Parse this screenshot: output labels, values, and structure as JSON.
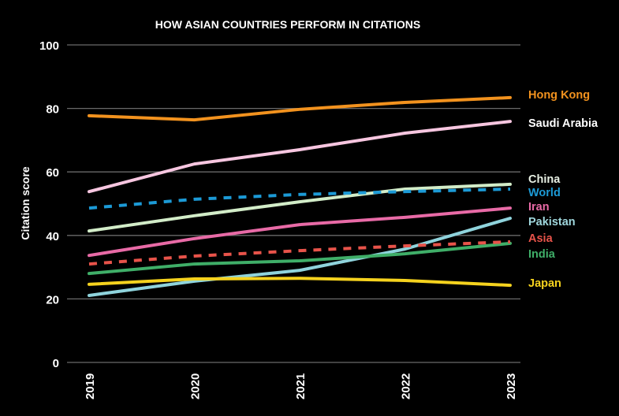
{
  "chart_data": {
    "type": "line",
    "title": "HOW ASIAN COUNTRIES PERFORM IN CITATIONS",
    "xlabel": "",
    "ylabel": "Citation score",
    "ylim": [
      0,
      100
    ],
    "yticks": [
      0,
      20,
      40,
      60,
      80,
      100
    ],
    "categories": [
      "2019",
      "2020",
      "2021",
      "2022",
      "2023"
    ],
    "grid": "horizontal",
    "legend": "right, labels at line ends",
    "series": [
      {
        "name": "Hong Kong",
        "color": "#f2921e",
        "dashed": false,
        "values": [
          77.7,
          76.4,
          79.7,
          81.9,
          83.4
        ]
      },
      {
        "name": "Saudi Arabia",
        "color": "#f7c6e0",
        "dashed": false,
        "values": [
          53.8,
          62.5,
          67.0,
          72.2,
          75.9
        ]
      },
      {
        "name": "China",
        "color": "#d2ecc8",
        "dashed": false,
        "values": [
          41.4,
          46.2,
          50.6,
          54.6,
          56.1
        ]
      },
      {
        "name": "World",
        "color": "#1c9ad6",
        "dashed": true,
        "values": [
          48.6,
          51.4,
          52.9,
          53.8,
          54.6
        ]
      },
      {
        "name": "Iran",
        "color": "#e86aa6",
        "dashed": false,
        "values": [
          33.7,
          39.0,
          43.4,
          45.7,
          48.6
        ]
      },
      {
        "name": "Pakistan",
        "color": "#8fd3dc",
        "dashed": false,
        "values": [
          21.1,
          25.6,
          29.0,
          35.7,
          45.4
        ]
      },
      {
        "name": "Asia",
        "color": "#e8534a",
        "dashed": true,
        "values": [
          31.0,
          33.5,
          35.2,
          36.7,
          38.0
        ]
      },
      {
        "name": "India",
        "color": "#3fae68",
        "dashed": false,
        "values": [
          28.0,
          31.0,
          32.0,
          34.2,
          37.5
        ]
      },
      {
        "name": "Japan",
        "color": "#f5d21e",
        "dashed": false,
        "values": [
          24.6,
          26.3,
          26.5,
          25.8,
          24.3
        ]
      }
    ],
    "label_colors": {
      "Saudi Arabia": "#ffffff",
      "China": "#e8f0e4",
      "Pakistan": "#9fd6dc",
      "India": "#3fae68"
    }
  }
}
